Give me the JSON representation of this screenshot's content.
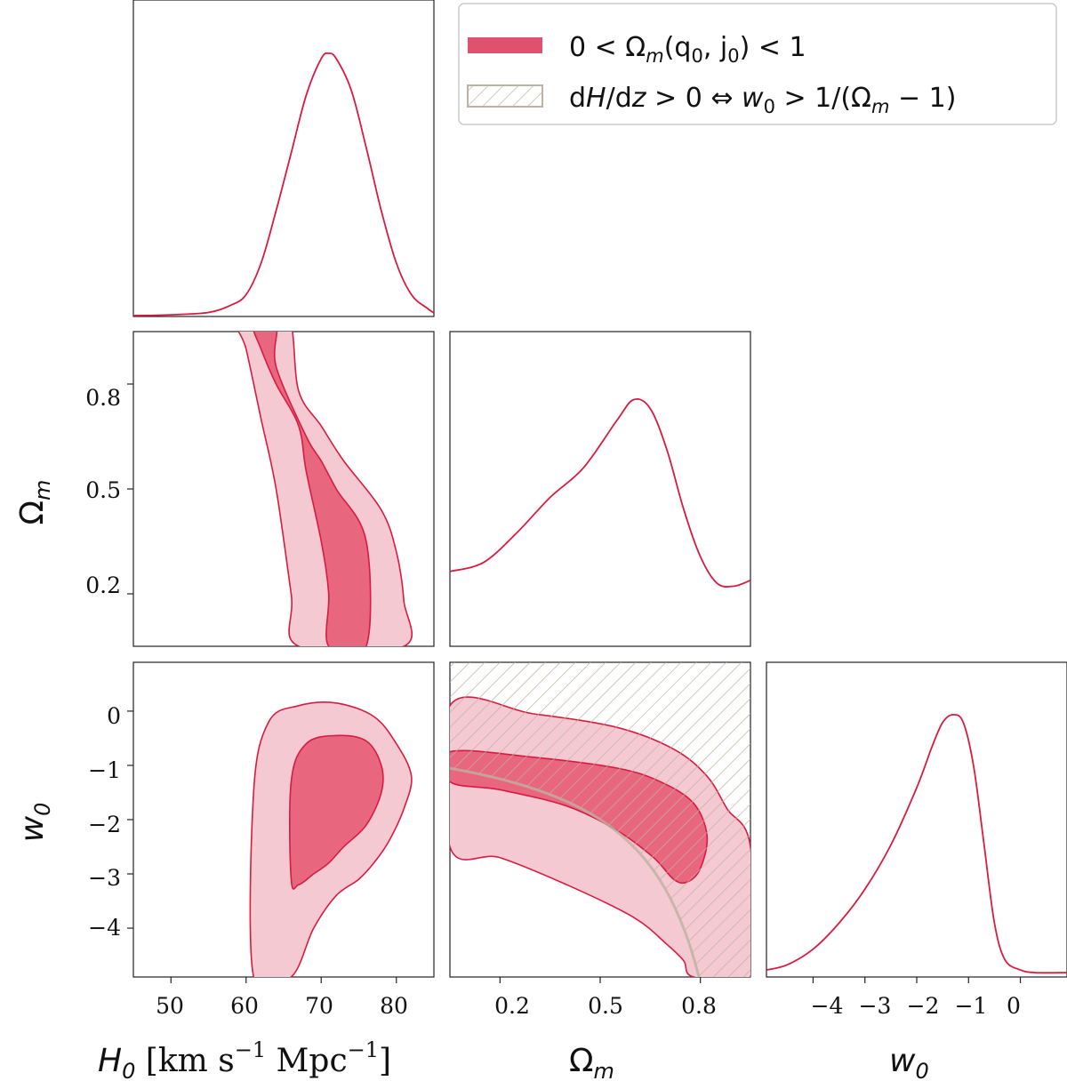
{
  "chart_data": {
    "type": "corner-plot",
    "parameters": [
      {
        "name": "H0",
        "label": "H_0 [km s^-1 Mpc^-1]",
        "range": [
          45,
          85
        ],
        "ticks": [
          50,
          60,
          70,
          80
        ]
      },
      {
        "name": "Omega_m",
        "label": "Ω_m",
        "range": [
          0.05,
          0.95
        ],
        "ticks": [
          0.2,
          0.5,
          0.8
        ]
      },
      {
        "name": "w0",
        "label": "w_0",
        "range": [
          -4.9,
          0.9
        ],
        "ticks": [
          0,
          -1,
          -2,
          -3,
          -4
        ]
      }
    ],
    "tick_labels": {
      "h0": [
        "50",
        "60",
        "70",
        "80"
      ],
      "om": [
        "0.2",
        "0.5",
        "0.8"
      ],
      "w0_y": [
        "0",
        "−1",
        "−2",
        "−3",
        "−4"
      ],
      "w0_x": [
        "−4",
        "−3",
        "−2",
        "−1",
        "0"
      ]
    },
    "axis_labels": {
      "h0_text": "H",
      "h0_sub": "0",
      "h0_units_1": " [km s",
      "h0_units_sup1": "−1",
      "h0_units_2": " Mpc",
      "h0_units_sup2": "−1",
      "h0_units_3": "]",
      "om_text": "Ω",
      "om_sub": "m",
      "w0_text": "w",
      "w0_sub": "0"
    },
    "legend": {
      "entry_1": {
        "label_a": "0 < Ω",
        "label_a_sub": "m",
        "label_b": "(q",
        "label_b_sub": "0",
        "label_c": ", j",
        "label_c_sub": "0",
        "label_d": ") < 1",
        "color": "#e05170"
      },
      "entry_2": {
        "label_a": "d",
        "label_b": "H",
        "label_c": "/d",
        "label_d": "z",
        "label_e": " > 0  ⇔  ",
        "label_f": "w",
        "label_f_sub": "0",
        "label_g": " > 1/(Ω",
        "label_g_sub": "m",
        "label_h": " − 1)",
        "color": "#bdb2a3"
      },
      "placement": "top-right"
    },
    "marginals": {
      "H0": {
        "x": [
          45,
          50,
          55,
          58,
          60,
          62,
          64,
          66,
          68,
          70,
          71,
          72,
          74,
          76,
          78,
          80,
          82,
          84,
          85
        ],
        "density": [
          0.0,
          0.003,
          0.012,
          0.04,
          0.08,
          0.2,
          0.4,
          0.62,
          0.84,
          0.98,
          1.0,
          0.98,
          0.86,
          0.64,
          0.4,
          0.2,
          0.08,
          0.03,
          0.01
        ]
      },
      "Omega_m": {
        "x": [
          0.05,
          0.15,
          0.25,
          0.35,
          0.45,
          0.55,
          0.6,
          0.65,
          0.7,
          0.75,
          0.8,
          0.85,
          0.9,
          0.95
        ],
        "density": [
          0.25,
          0.28,
          0.38,
          0.5,
          0.6,
          0.76,
          0.83,
          0.8,
          0.66,
          0.46,
          0.3,
          0.21,
          0.2,
          0.22
        ]
      },
      "w0": {
        "x": [
          -4.9,
          -4.5,
          -4,
          -3.5,
          -3,
          -2.5,
          -2,
          -1.7,
          -1.5,
          -1.3,
          -1.1,
          -0.9,
          -0.7,
          -0.5,
          -0.3,
          0,
          0.3,
          0.9
        ],
        "density": [
          0.02,
          0.04,
          0.1,
          0.2,
          0.33,
          0.5,
          0.72,
          0.88,
          0.97,
          1.0,
          0.97,
          0.8,
          0.5,
          0.2,
          0.06,
          0.02,
          0.01,
          0.01
        ]
      }
    },
    "contours_68_95": {
      "H0_Omega_m": {
        "outer": [
          [
            64,
            0.97
          ],
          [
            66,
            0.97
          ],
          [
            67,
            0.78
          ],
          [
            70,
            0.68
          ],
          [
            73,
            0.58
          ],
          [
            78,
            0.44
          ],
          [
            80,
            0.32
          ],
          [
            81,
            0.18
          ],
          [
            81,
            0.05
          ],
          [
            67,
            0.05
          ],
          [
            66,
            0.2
          ],
          [
            64,
            0.5
          ],
          [
            62,
            0.7
          ],
          [
            60,
            0.9
          ],
          [
            59,
            0.97
          ]
        ],
        "inner": [
          [
            61,
            0.97
          ],
          [
            64,
            0.97
          ],
          [
            64,
            0.85
          ],
          [
            68,
            0.65
          ],
          [
            70,
            0.58
          ],
          [
            72,
            0.5
          ],
          [
            76,
            0.35
          ],
          [
            76,
            0.05
          ],
          [
            71,
            0.05
          ],
          [
            71,
            0.2
          ],
          [
            70,
            0.35
          ],
          [
            68,
            0.55
          ],
          [
            67,
            0.68
          ],
          [
            64,
            0.8
          ],
          [
            62,
            0.9
          ]
        ]
      },
      "H0_w0": {
        "outer": [
          [
            61,
            -4.9
          ],
          [
            61,
            -1.5
          ],
          [
            63,
            -0.2
          ],
          [
            67,
            0.1
          ],
          [
            72,
            0.15
          ],
          [
            77,
            -0.1
          ],
          [
            80,
            -0.6
          ],
          [
            82,
            -1.2
          ],
          [
            81,
            -1.8
          ],
          [
            79,
            -2.4
          ],
          [
            77,
            -2.8
          ],
          [
            75,
            -3.1
          ],
          [
            72,
            -3.4
          ],
          [
            69,
            -4.0
          ],
          [
            66,
            -4.9
          ]
        ],
        "inner": [
          [
            66,
            -3.1
          ],
          [
            66,
            -1.3
          ],
          [
            68,
            -0.6
          ],
          [
            72,
            -0.45
          ],
          [
            76,
            -0.55
          ],
          [
            78,
            -1.0
          ],
          [
            78,
            -1.5
          ],
          [
            76,
            -2.1
          ],
          [
            73,
            -2.5
          ],
          [
            71,
            -2.8
          ],
          [
            69,
            -3.0
          ],
          [
            67,
            -3.2
          ]
        ]
      },
      "Omega_m_w0": {
        "outer": [
          [
            0.05,
            0.1
          ],
          [
            0.3,
            -0.05
          ],
          [
            0.55,
            -0.3
          ],
          [
            0.72,
            -0.7
          ],
          [
            0.82,
            -1.2
          ],
          [
            0.88,
            -1.8
          ],
          [
            0.95,
            -2.5
          ],
          [
            0.95,
            -4.9
          ],
          [
            0.78,
            -4.9
          ],
          [
            0.75,
            -4.6
          ],
          [
            0.7,
            -4.3
          ],
          [
            0.6,
            -3.8
          ],
          [
            0.4,
            -3.2
          ],
          [
            0.2,
            -2.7
          ],
          [
            0.05,
            -2.5
          ]
        ],
        "inner": [
          [
            0.05,
            -0.75
          ],
          [
            0.3,
            -0.85
          ],
          [
            0.55,
            -1.05
          ],
          [
            0.68,
            -1.3
          ],
          [
            0.78,
            -1.7
          ],
          [
            0.82,
            -2.3
          ],
          [
            0.8,
            -2.9
          ],
          [
            0.76,
            -3.15
          ],
          [
            0.72,
            -3.1
          ],
          [
            0.66,
            -2.7
          ],
          [
            0.55,
            -2.2
          ],
          [
            0.4,
            -1.75
          ],
          [
            0.2,
            -1.45
          ],
          [
            0.05,
            -1.3
          ]
        ]
      }
    },
    "hatched_boundary": {
      "description": "w0 = 1/(Omega_m - 1)",
      "region": "above"
    },
    "colors": {
      "contour_line": "#d81b40",
      "inner_fill": "#e8677f",
      "outer_fill": "#f5c9d1",
      "hatch": "#bdb2a3"
    }
  }
}
